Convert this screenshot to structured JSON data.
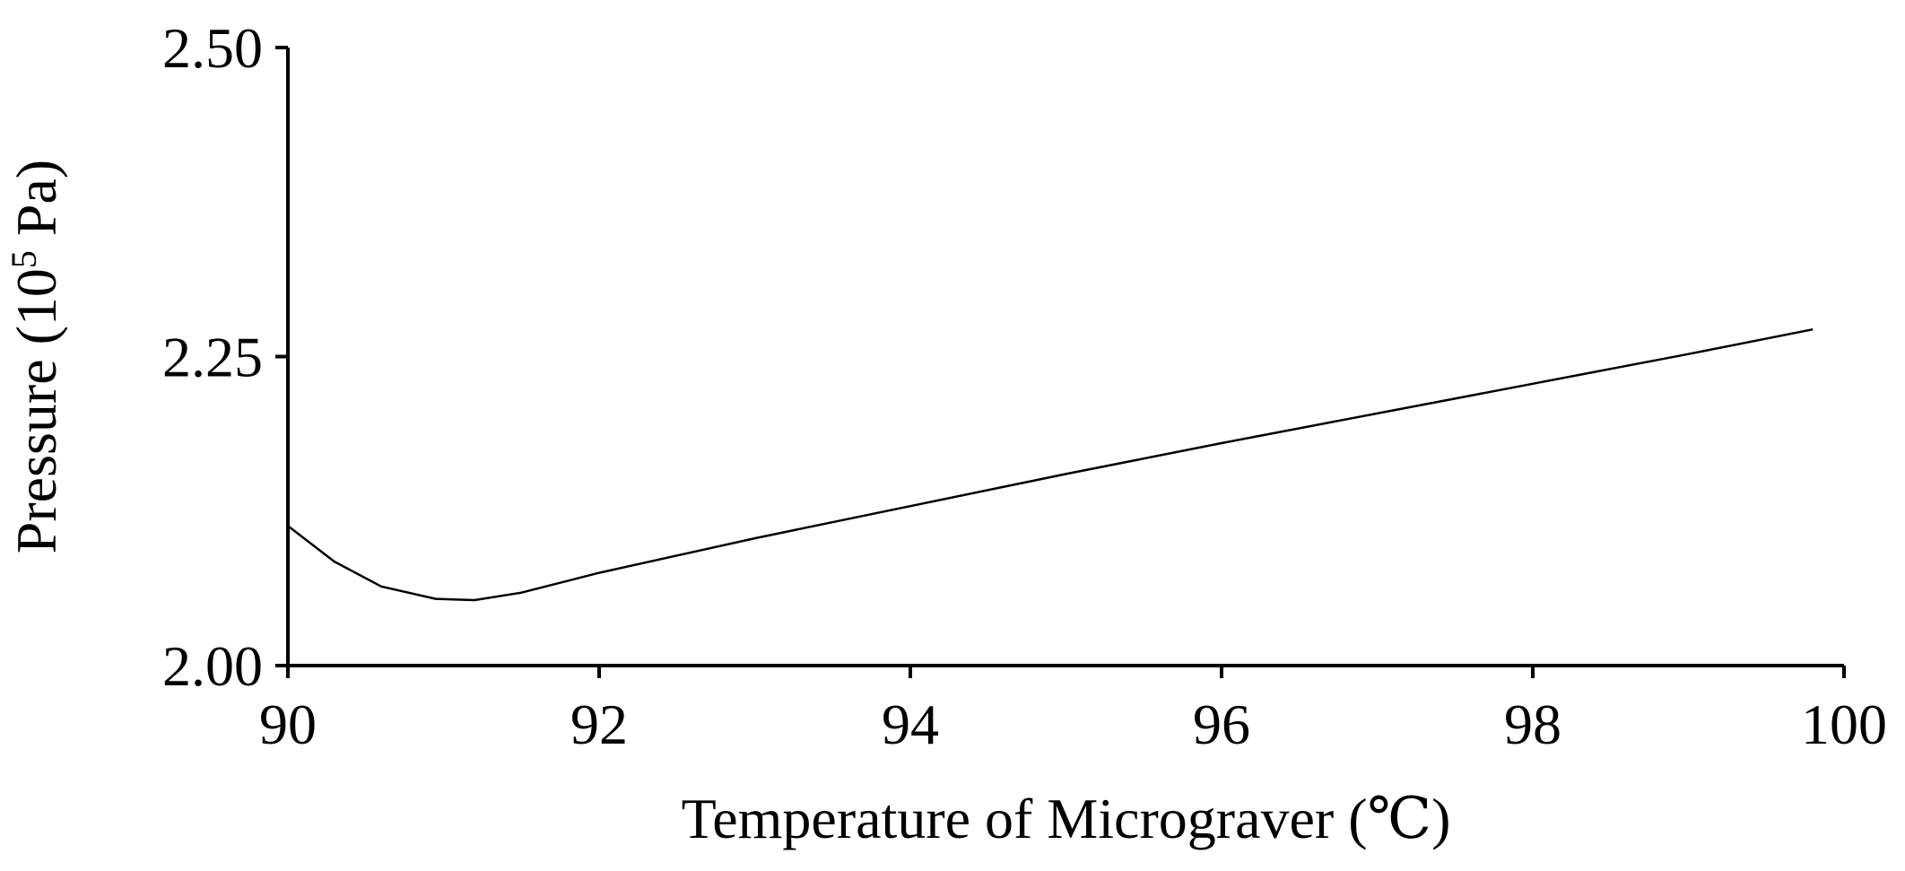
{
  "chart_data": {
    "type": "line",
    "title": "",
    "xlabel": "Temperature of Micrograver (℃)",
    "ylabel": {
      "main": "Pressure (10",
      "exponent": "5",
      "unit": " Pa)"
    },
    "xlim": [
      90,
      100
    ],
    "ylim": [
      2.0,
      2.5
    ],
    "x_ticks": [
      "90",
      "92",
      "94",
      "96",
      "98",
      "100"
    ],
    "y_ticks": [
      "2.00",
      "2.25",
      "2.50"
    ],
    "grid": false,
    "legend": "none",
    "series": [
      {
        "x": [
          90.0,
          90.3,
          90.6,
          90.95,
          91.2,
          91.5,
          92.0,
          93.0,
          94.0,
          95.0,
          96.0,
          97.0,
          98.0,
          99.0,
          99.8
        ],
        "y": [
          2.113,
          2.084,
          2.064,
          2.054,
          2.053,
          2.059,
          2.075,
          2.103,
          2.129,
          2.155,
          2.18,
          2.204,
          2.228,
          2.252,
          2.272
        ]
      }
    ],
    "colors": {
      "line": "#000000",
      "axis": "#000000"
    }
  }
}
